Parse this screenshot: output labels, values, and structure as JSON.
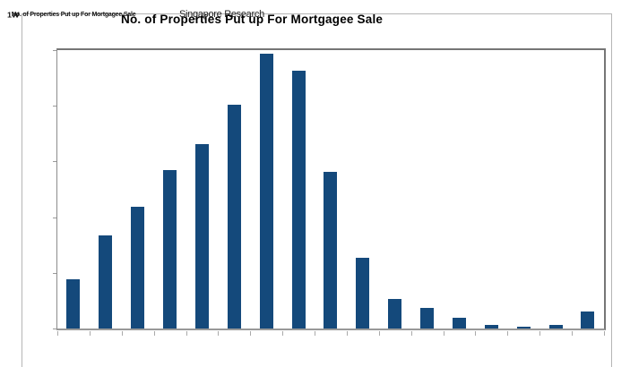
{
  "title": "No. of Properties Put up For Mortgagee Sale",
  "overlay_garble": {
    "description": "overlapping illegible text artifact at top-left",
    "fragment_bold": "1W",
    "fragment_small_title": "No. of Properties Put up For Mortgagee Sale",
    "fragment_source": "Singapore Research"
  },
  "colors": {
    "bar": "#14497B",
    "plot_border": "#767676",
    "axis_line": "#999999",
    "tick": "#aaaaaa",
    "outer_frame": "#b5b5b5",
    "title_text": "#000000",
    "background": "#ffffff"
  },
  "chart_data": {
    "type": "bar",
    "title": "No. of Properties Put up For Mortgagee Sale",
    "categories": [
      "",
      "",
      "",
      "",
      "",
      "",
      "",
      "",
      "",
      "",
      "",
      "",
      "",
      "",
      "",
      "",
      ""
    ],
    "values": [
      89,
      168,
      219,
      284,
      331,
      402,
      494,
      463,
      282,
      127,
      53,
      37,
      19,
      6,
      4,
      7,
      30
    ],
    "series_name": "No. of properties",
    "xlabel": "",
    "ylabel": "",
    "ylim": [
      0,
      500
    ],
    "y_tick_interval": 100,
    "y_tick_count": 6,
    "x_tick_count": 18,
    "axis_tick_labels_visible": false,
    "legend": false,
    "grid": false,
    "note": "No axis tick labels are rendered in the image; values estimated from bar pixel heights against the 5 unlabeled y-axis tick intervals (assumed 100 units each, plot top = 500)."
  }
}
